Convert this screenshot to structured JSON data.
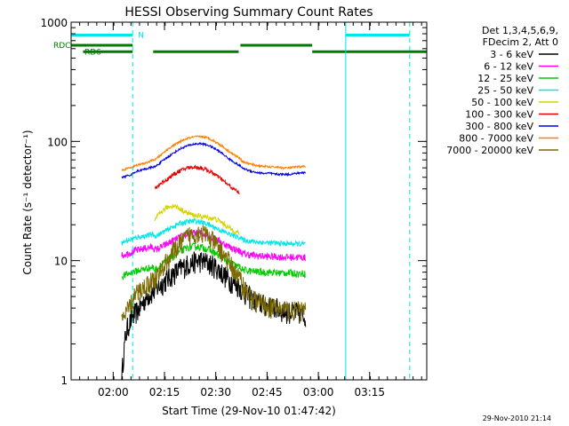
{
  "chart_data": {
    "type": "line",
    "title": "HESSI Observing Summary Count Rates",
    "xlabel": "Start Time (29-Nov-10 01:47:42)",
    "ylabel": "Count Rate (s⁻¹ detector⁻¹)",
    "yscale": "log",
    "ylim": [
      1,
      1000
    ],
    "xlim_minutes_after_start": [
      0,
      104
    ],
    "x_ticks": [
      {
        "label": "02:00",
        "min": 12.3
      },
      {
        "label": "02:15",
        "min": 27.3
      },
      {
        "label": "02:30",
        "min": 42.3
      },
      {
        "label": "02:45",
        "min": 57.3
      },
      {
        "label": "03:00",
        "min": 72.3
      },
      {
        "label": "03:15",
        "min": 87.3
      }
    ],
    "y_ticks": [
      {
        "label": "1000",
        "value": 1000
      },
      {
        "label": "100",
        "value": 100
      },
      {
        "label": "10",
        "value": 10
      },
      {
        "label": "1",
        "value": 1
      }
    ],
    "legend": {
      "header_line1": "Det 1,3,4,5,6,9,",
      "header_line2": "FDecim 2, Att 0",
      "placement": "right"
    },
    "flag_labels": [
      "N",
      "RDC",
      "RD6"
    ],
    "colors": {
      "axis": "#000000",
      "night": "#00e5e5",
      "rdc": "#007a00",
      "rd6": "#007a00"
    },
    "night_bars": [
      {
        "start": 0,
        "end": 18.0,
        "value": 780
      },
      {
        "start": 80.3,
        "end": 99.0,
        "value": 780
      }
    ],
    "rdc_bars": [
      {
        "start": 0,
        "end": 18.0,
        "value": 640
      },
      {
        "start": 49.5,
        "end": 70.5,
        "value": 640
      }
    ],
    "rd6_bars": [
      {
        "start": 3.5,
        "end": 18.0,
        "value": 565
      },
      {
        "start": 24.0,
        "end": 49.0,
        "value": 565
      },
      {
        "start": 70.5,
        "end": 104.0,
        "value": 565
      }
    ],
    "night_lines_solid": [
      0.0,
      80.3
    ],
    "night_lines_dashed": [
      18.0,
      99.0
    ],
    "series": [
      {
        "name": "3 - 6 keV",
        "color": "#000000",
        "points": [
          [
            14.8,
            1.0
          ],
          [
            15.2,
            1.5
          ],
          [
            15.8,
            2.2
          ],
          [
            16.4,
            2.7
          ],
          [
            17.0,
            3.0
          ],
          [
            17.9,
            3.3
          ],
          [
            18.4,
            3.5
          ],
          [
            20.0,
            4.0
          ],
          [
            22.0,
            5.0
          ],
          [
            24.0,
            5.5
          ],
          [
            26.0,
            6.2
          ],
          [
            28.0,
            7.0
          ],
          [
            30.0,
            7.8
          ],
          [
            32.0,
            8.6
          ],
          [
            34.0,
            9.3
          ],
          [
            36.0,
            9.8
          ],
          [
            38.0,
            10.0
          ],
          [
            40.0,
            9.6
          ],
          [
            42.0,
            9.0
          ],
          [
            44.0,
            8.0
          ],
          [
            46.0,
            7.0
          ],
          [
            48.0,
            6.4
          ],
          [
            49.5,
            6.0
          ],
          [
            50.0,
            5.6
          ],
          [
            52.0,
            5.0
          ],
          [
            54.0,
            4.6
          ],
          [
            56.0,
            4.3
          ],
          [
            58.0,
            4.1
          ],
          [
            60.0,
            4.0
          ],
          [
            62.0,
            3.8
          ],
          [
            64.0,
            3.7
          ],
          [
            66.0,
            3.7
          ],
          [
            67.5,
            3.6
          ],
          [
            68.0,
            3.5
          ],
          [
            68.6,
            3.5
          ]
        ],
        "noise": 0.22
      },
      {
        "name": "6 - 12 keV",
        "color": "#ff00ff",
        "points": [
          [
            14.8,
            11.0
          ],
          [
            16.0,
            11.4
          ],
          [
            17.9,
            11.8
          ],
          [
            18.4,
            12.0
          ],
          [
            20.0,
            12.4
          ],
          [
            22.0,
            12.8
          ],
          [
            24.0,
            13.0
          ],
          [
            24.5,
            12.3
          ],
          [
            26.0,
            12.8
          ],
          [
            28.0,
            13.8
          ],
          [
            30.0,
            14.8
          ],
          [
            32.0,
            15.8
          ],
          [
            34.0,
            16.6
          ],
          [
            36.0,
            17.0
          ],
          [
            38.0,
            17.0
          ],
          [
            40.0,
            16.4
          ],
          [
            42.0,
            15.4
          ],
          [
            44.0,
            14.2
          ],
          [
            46.0,
            13.2
          ],
          [
            48.0,
            12.4
          ],
          [
            49.5,
            12.0
          ],
          [
            50.0,
            11.5
          ],
          [
            52.0,
            11.2
          ],
          [
            54.0,
            11.0
          ],
          [
            56.0,
            10.9
          ],
          [
            58.0,
            10.8
          ],
          [
            60.0,
            10.8
          ],
          [
            62.0,
            10.7
          ],
          [
            64.0,
            10.7
          ],
          [
            66.0,
            10.7
          ],
          [
            68.6,
            10.6
          ]
        ],
        "noise": 0.07
      },
      {
        "name": "12 - 25 keV",
        "color": "#00cc00",
        "points": [
          [
            14.8,
            7.3
          ],
          [
            16.0,
            7.6
          ],
          [
            17.9,
            8.0
          ],
          [
            18.4,
            8.1
          ],
          [
            20.0,
            8.3
          ],
          [
            22.0,
            8.6
          ],
          [
            24.0,
            8.8
          ],
          [
            24.5,
            8.3
          ],
          [
            26.0,
            9.0
          ],
          [
            28.0,
            10.0
          ],
          [
            30.0,
            11.0
          ],
          [
            32.0,
            12.0
          ],
          [
            34.0,
            12.8
          ],
          [
            36.0,
            13.2
          ],
          [
            38.0,
            13.0
          ],
          [
            40.0,
            12.5
          ],
          [
            42.0,
            11.6
          ],
          [
            44.0,
            10.6
          ],
          [
            46.0,
            9.8
          ],
          [
            48.0,
            9.1
          ],
          [
            49.5,
            8.8
          ],
          [
            50.0,
            8.4
          ],
          [
            52.0,
            8.2
          ],
          [
            54.0,
            8.1
          ],
          [
            56.0,
            8.0
          ],
          [
            58.0,
            8.0
          ],
          [
            60.0,
            7.9
          ],
          [
            62.0,
            7.9
          ],
          [
            64.0,
            7.9
          ],
          [
            66.0,
            7.8
          ],
          [
            68.6,
            7.8
          ]
        ],
        "noise": 0.07
      },
      {
        "name": "25 - 50 keV",
        "color": "#00e5e5",
        "points": [
          [
            14.8,
            14.0
          ],
          [
            16.0,
            14.6
          ],
          [
            17.9,
            15.2
          ],
          [
            18.4,
            15.4
          ],
          [
            20.0,
            15.8
          ],
          [
            22.0,
            16.2
          ],
          [
            24.0,
            16.6
          ],
          [
            24.5,
            16.0
          ],
          [
            26.0,
            16.8
          ],
          [
            28.0,
            18.0
          ],
          [
            30.0,
            19.5
          ],
          [
            32.0,
            20.6
          ],
          [
            34.0,
            21.2
          ],
          [
            36.0,
            21.5
          ],
          [
            38.0,
            21.0
          ],
          [
            40.0,
            20.2
          ],
          [
            42.0,
            19.0
          ],
          [
            44.0,
            17.8
          ],
          [
            46.0,
            16.8
          ],
          [
            48.0,
            16.0
          ],
          [
            49.5,
            15.6
          ],
          [
            50.0,
            15.0
          ],
          [
            52.0,
            14.6
          ],
          [
            54.0,
            14.4
          ],
          [
            56.0,
            14.2
          ],
          [
            58.0,
            14.1
          ],
          [
            60.0,
            14.0
          ],
          [
            62.0,
            13.9
          ],
          [
            64.0,
            13.9
          ],
          [
            66.0,
            13.8
          ],
          [
            68.6,
            13.8
          ]
        ],
        "noise": 0.05
      },
      {
        "name": "50 - 100 keV",
        "color": "#d4d400",
        "points": [
          [
            24.5,
            22.0
          ],
          [
            26.0,
            25.0
          ],
          [
            28.0,
            28.0
          ],
          [
            30.0,
            29.0
          ],
          [
            32.0,
            27.0
          ],
          [
            34.0,
            25.0
          ],
          [
            36.0,
            24.0
          ],
          [
            38.0,
            23.5
          ],
          [
            40.0,
            23.0
          ],
          [
            42.0,
            22.5
          ],
          [
            44.0,
            21.0
          ],
          [
            46.0,
            19.0
          ],
          [
            48.0,
            17.5
          ],
          [
            49.3,
            17.0
          ]
        ],
        "noise": 0.05
      },
      {
        "name": "100 - 300 keV",
        "color": "#e60000",
        "points": [
          [
            24.5,
            40.0
          ],
          [
            26.0,
            44.0
          ],
          [
            28.0,
            48.0
          ],
          [
            30.0,
            53.0
          ],
          [
            32.0,
            57.0
          ],
          [
            34.0,
            60.0
          ],
          [
            36.0,
            61.0
          ],
          [
            38.0,
            60.0
          ],
          [
            40.0,
            57.0
          ],
          [
            42.0,
            53.0
          ],
          [
            44.0,
            48.0
          ],
          [
            46.0,
            43.0
          ],
          [
            48.0,
            39.0
          ],
          [
            49.3,
            37.0
          ]
        ],
        "noise": 0.04
      },
      {
        "name": "300 - 800 keV",
        "color": "#0000e6",
        "points": [
          [
            14.8,
            50.0
          ],
          [
            16.0,
            51.0
          ],
          [
            17.9,
            53.0
          ],
          [
            18.4,
            55.0
          ],
          [
            20.0,
            57.0
          ],
          [
            22.0,
            59.0
          ],
          [
            24.0,
            61.0
          ],
          [
            24.5,
            61.0
          ],
          [
            26.0,
            66.0
          ],
          [
            28.0,
            73.0
          ],
          [
            30.0,
            80.0
          ],
          [
            32.0,
            87.0
          ],
          [
            34.0,
            92.0
          ],
          [
            36.0,
            95.0
          ],
          [
            38.0,
            96.0
          ],
          [
            40.0,
            93.0
          ],
          [
            42.0,
            87.0
          ],
          [
            44.0,
            80.0
          ],
          [
            46.0,
            72.0
          ],
          [
            48.0,
            66.0
          ],
          [
            49.5,
            62.0
          ],
          [
            50.0,
            60.0
          ],
          [
            52.0,
            57.0
          ],
          [
            54.0,
            55.0
          ],
          [
            56.0,
            54.0
          ],
          [
            58.0,
            54.0
          ],
          [
            60.0,
            53.0
          ],
          [
            62.0,
            53.0
          ],
          [
            64.0,
            53.0
          ],
          [
            66.0,
            54.0
          ],
          [
            68.6,
            55.0
          ]
        ],
        "noise": 0.02
      },
      {
        "name": "800 - 7000 keV",
        "color": "#ff8000",
        "points": [
          [
            14.8,
            57.0
          ],
          [
            16.0,
            59.0
          ],
          [
            17.9,
            61.0
          ],
          [
            18.4,
            62.0
          ],
          [
            20.0,
            64.0
          ],
          [
            22.0,
            66.0
          ],
          [
            24.0,
            70.0
          ],
          [
            24.5,
            70.0
          ],
          [
            26.0,
            76.0
          ],
          [
            28.0,
            85.0
          ],
          [
            30.0,
            93.0
          ],
          [
            32.0,
            100.0
          ],
          [
            34.0,
            106.0
          ],
          [
            36.0,
            109.0
          ],
          [
            38.0,
            110.0
          ],
          [
            40.0,
            107.0
          ],
          [
            42.0,
            100.0
          ],
          [
            44.0,
            92.0
          ],
          [
            46.0,
            83.0
          ],
          [
            48.0,
            76.0
          ],
          [
            49.5,
            72.0
          ],
          [
            50.0,
            68.0
          ],
          [
            52.0,
            65.0
          ],
          [
            54.0,
            63.0
          ],
          [
            56.0,
            62.0
          ],
          [
            58.0,
            61.0
          ],
          [
            60.0,
            61.0
          ],
          [
            62.0,
            60.0
          ],
          [
            64.0,
            60.0
          ],
          [
            66.0,
            61.0
          ],
          [
            68.6,
            62.0
          ]
        ],
        "noise": 0.02
      },
      {
        "name": "7000 - 20000 keV",
        "color": "#7a6a00",
        "points": [
          [
            14.8,
            3.0
          ],
          [
            16.0,
            3.6
          ],
          [
            17.9,
            4.5
          ],
          [
            18.4,
            5.0
          ],
          [
            20.0,
            5.6
          ],
          [
            22.0,
            6.2
          ],
          [
            24.0,
            7.0
          ],
          [
            24.5,
            7.0
          ],
          [
            26.0,
            8.0
          ],
          [
            28.0,
            10.0
          ],
          [
            30.0,
            12.0
          ],
          [
            32.0,
            14.0
          ],
          [
            34.0,
            16.0
          ],
          [
            36.0,
            17.0
          ],
          [
            38.0,
            17.5
          ],
          [
            40.0,
            16.0
          ],
          [
            42.0,
            14.0
          ],
          [
            44.0,
            12.0
          ],
          [
            46.0,
            10.0
          ],
          [
            48.0,
            8.0
          ],
          [
            49.5,
            7.0
          ],
          [
            50.0,
            6.4
          ],
          [
            52.0,
            5.2
          ],
          [
            54.0,
            4.6
          ],
          [
            56.0,
            4.3
          ],
          [
            58.0,
            4.1
          ],
          [
            60.0,
            4.0
          ],
          [
            62.0,
            3.9
          ],
          [
            64.0,
            3.8
          ],
          [
            66.0,
            3.8
          ],
          [
            68.6,
            3.8
          ]
        ],
        "noise": 0.2
      }
    ]
  },
  "footer": {
    "date_stamp": "29-Nov-2010 21:14"
  }
}
